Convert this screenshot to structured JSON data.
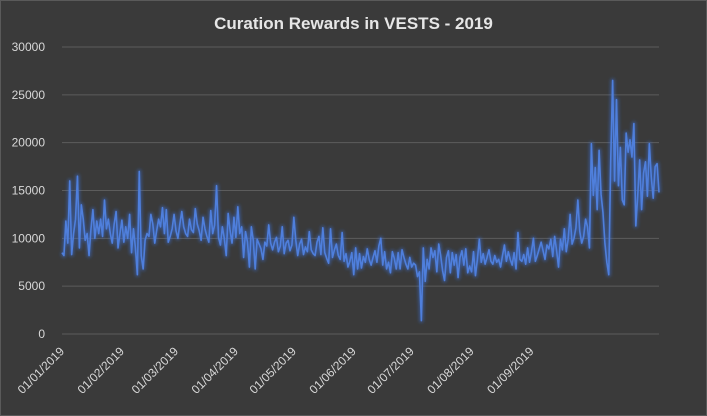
{
  "chart_data": {
    "type": "line",
    "title": "Curation Rewards in VESTS - 2019",
    "xlabel": "",
    "ylabel": "",
    "ylim": [
      0,
      30000
    ],
    "yticks": [
      0,
      5000,
      10000,
      15000,
      20000,
      25000,
      30000
    ],
    "ytick_labels": [
      "0",
      "5000",
      "10000",
      "15000",
      "20000",
      "25000",
      "30000"
    ],
    "xticks": [
      "01/01/2019",
      "01/02/2019",
      "01/03/2019",
      "01/04/2019",
      "01/05/2019",
      "01/06/2019",
      "01/07/2019",
      "01/08/2019",
      "01/09/2019"
    ],
    "x_start": "01/01/2019",
    "grid": true,
    "line_color": "#4f7fdc",
    "glow_color": "#3d6fd6",
    "series": [
      {
        "values": [
          8500,
          8200,
          11800,
          9500,
          16000,
          8300,
          10500,
          12000,
          16500,
          9000,
          13500,
          12000,
          9800,
          10500,
          8200,
          11000,
          13000,
          10000,
          11800,
          10500,
          12000,
          10200,
          14000,
          11000,
          12000,
          10500,
          9500,
          11500,
          12800,
          9000,
          10500,
          11900,
          9600,
          11200,
          10000,
          12500,
          8500,
          11000,
          9000,
          6200,
          17000,
          8200,
          6800,
          9800,
          10500,
          10200,
          12500,
          11500,
          9500,
          10800,
          12000,
          11200,
          13200,
          10500,
          13000,
          9600,
          10200,
          11000,
          12500,
          10800,
          10000,
          11500,
          12800,
          11200,
          10500,
          10200,
          12000,
          10900,
          10600,
          13100,
          11500,
          10800,
          9800,
          12200,
          11000,
          10200,
          9600,
          12900,
          10500,
          11400,
          15500,
          10100,
          9300,
          11200,
          10000,
          8200,
          12600,
          10800,
          9500,
          12200,
          10100,
          13300,
          10500,
          11200,
          8000,
          10700,
          9600,
          7000,
          11200,
          9800,
          6800,
          9900,
          9400,
          8900,
          7800,
          9600,
          9200,
          11400,
          9500,
          8800,
          9600,
          10100,
          8600,
          9200,
          11200,
          8400,
          9500,
          9800,
          8700,
          9300,
          12200,
          9800,
          8200,
          9400,
          9900,
          8300,
          9100,
          8600,
          10700,
          8800,
          8400,
          8200,
          9600,
          10200,
          8300,
          11100,
          8500,
          7900,
          7400,
          11000,
          8000,
          8800,
          9400,
          8200,
          7800,
          10600,
          7600,
          8400,
          7000,
          7600,
          8500,
          6200,
          9000,
          6800,
          8400,
          6900,
          8100,
          7500,
          8900,
          7800,
          7200,
          8000,
          8700,
          7500,
          9200,
          10000,
          7200,
          8600,
          6800,
          7500,
          6400,
          8600,
          7900,
          6800,
          8500,
          6800,
          8800,
          8000,
          7300,
          6800,
          8000,
          7000,
          7400,
          7200,
          6000,
          6500,
          1400,
          9000,
          5500,
          7800,
          6800,
          9000,
          8000,
          8700,
          6500,
          9400,
          8200,
          6600,
          5600,
          8000,
          8700,
          6400,
          8500,
          7200,
          8300,
          5900,
          8000,
          8700,
          7200,
          8900,
          6400,
          7100,
          6500,
          8600,
          6100,
          7800,
          9900,
          7500,
          8400,
          7300,
          8000,
          8800,
          7600,
          7300,
          8200,
          7500,
          7800,
          7000,
          8200,
          9300,
          7600,
          8600,
          7800,
          7200,
          8500,
          6800,
          10600,
          7800,
          7600,
          8300,
          7300,
          9000,
          7500,
          8600,
          10000,
          7600,
          8200,
          8900,
          9600,
          8700,
          7800,
          9300,
          8900,
          9900,
          8100,
          10200,
          8700,
          7000,
          9900,
          8800,
          11000,
          8600,
          9900,
          12500,
          9400,
          10000,
          11100,
          14000,
          10700,
          9500,
          10200,
          12000,
          11200,
          9000,
          19900,
          14500,
          17400,
          13000,
          19200,
          14600,
          12700,
          9500,
          7500,
          6200,
          18000,
          26500,
          16000,
          24500,
          15500,
          19500,
          14000,
          13500,
          21000,
          19000,
          20300,
          18500,
          22000,
          11300,
          14500,
          18200,
          13000,
          16800,
          18000,
          14400,
          19900,
          16400,
          14200,
          17500,
          17800,
          14800
        ],
        "color": "#4f7fdc"
      }
    ]
  }
}
